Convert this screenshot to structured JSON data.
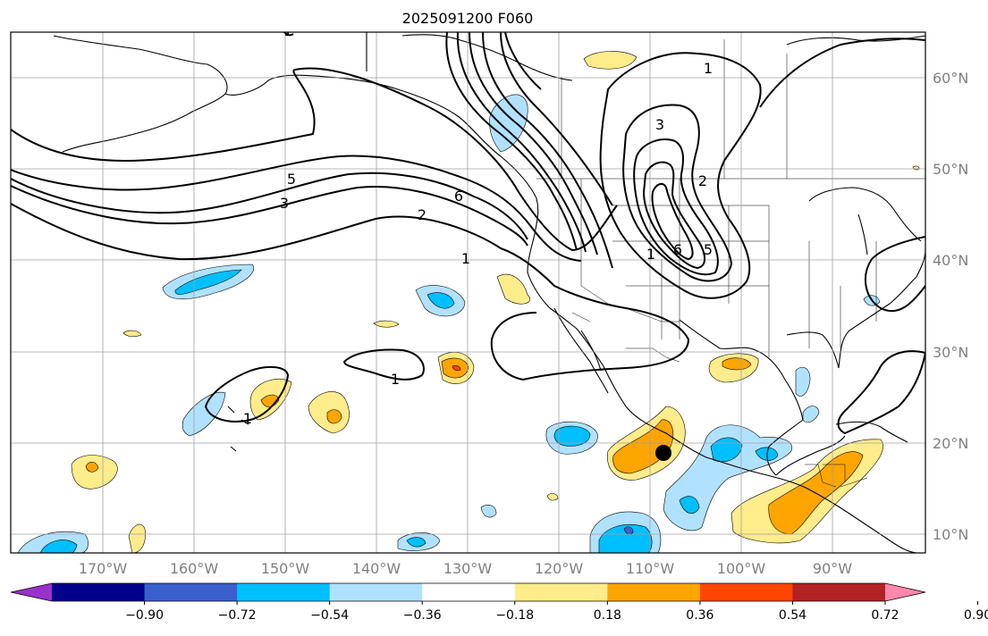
{
  "title": "2025091200 F060",
  "map": {
    "lat_labels": [
      "60°N",
      "50°N",
      "40°N",
      "30°N",
      "20°N",
      "10°N"
    ],
    "lon_labels": [
      "170°W",
      "160°W",
      "150°W",
      "140°W",
      "130°W",
      "120°W",
      "110°W",
      "100°W",
      "90°W"
    ],
    "contour_labels": [
      "1",
      "3",
      "5",
      "6",
      "2",
      "1",
      "1",
      "1",
      "3",
      "2",
      "6",
      "5",
      "1",
      "1"
    ],
    "marker": "storm-center-dot"
  },
  "colorbar": {
    "tick_labels": [
      "−0.90",
      "−0.72",
      "−0.54",
      "−0.36",
      "−0.18",
      "0.18",
      "0.36",
      "0.54",
      "0.72",
      "0.90"
    ],
    "colors": [
      "#9932cc",
      "#00008b",
      "#3a5fcd",
      "#00bfff",
      "#b0e2ff",
      "#ffffff",
      "#ffec8b",
      "#ffa500",
      "#ff4500",
      "#b22222",
      "#ff88aa"
    ]
  },
  "colors": {
    "grid": "#a0a0a0",
    "contour": "#000000",
    "coast": "#000000",
    "light_blue": "#b0e2ff",
    "blue": "#00bfff",
    "yellow": "#ffec8b",
    "orange": "#ffa500",
    "red": "#ff4500",
    "dark_blue": "#3a5fcd"
  }
}
